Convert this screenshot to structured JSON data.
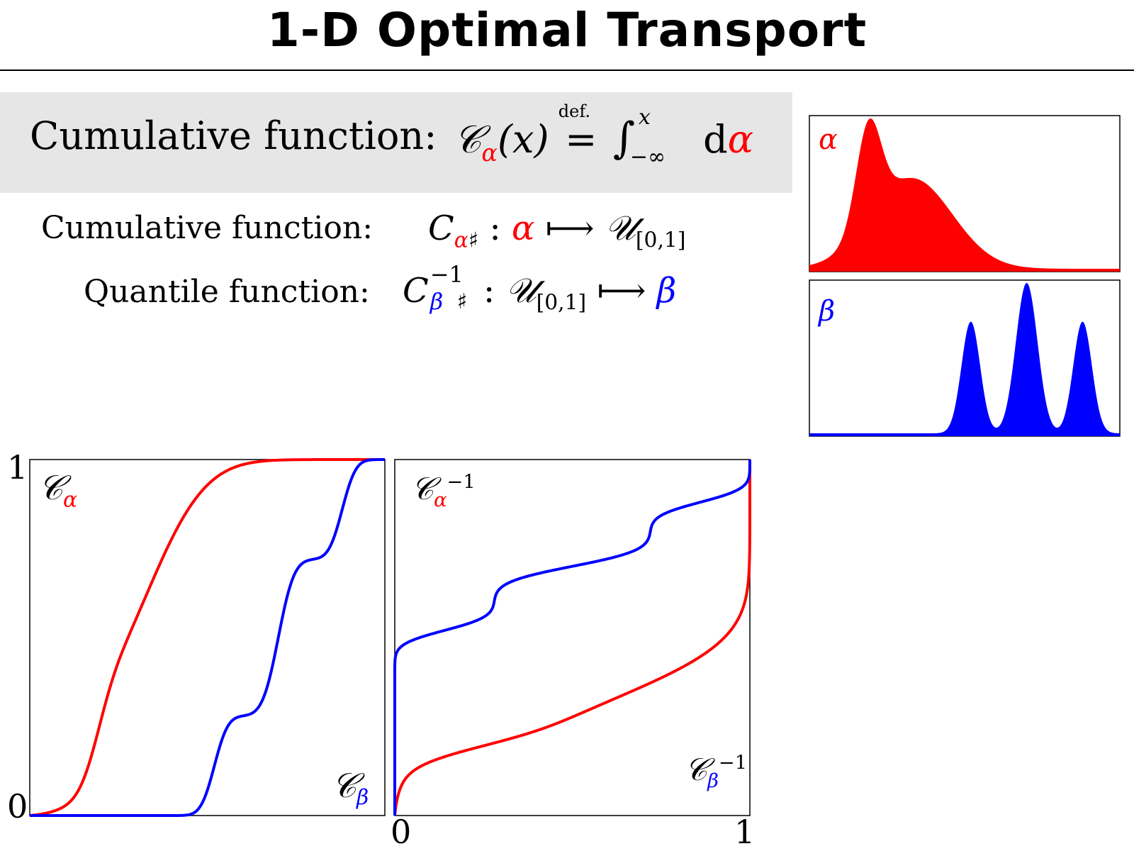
{
  "slide": {
    "title": "1-D Optimal Transport",
    "definition": {
      "label": "Cumulative function:",
      "lhs": "𝒞",
      "sub": "α",
      "arg": "(x)",
      "def": "def.",
      "eq": "=",
      "integral": "∫",
      "upper": "x",
      "lower": "−∞",
      "d": "d",
      "measure": "α"
    },
    "cumulative": {
      "label": "Cumulative function:",
      "C": "C",
      "sub": "α",
      "sharp": "♯",
      "colon": ":",
      "src": "α",
      "arrow": "⟼",
      "U": "𝒰",
      "Usub": "[0,1]"
    },
    "quantile": {
      "label": "Quantile function:",
      "C": "C",
      "sup": "−1",
      "sub": "β",
      "sharp": "♯",
      "colon": ":",
      "U": "𝒰",
      "Usub": "[0,1]",
      "arrow": "⟼",
      "dst": "β"
    }
  },
  "colors": {
    "alpha": "#ff0000",
    "beta": "#0000ff"
  },
  "chart_data": [
    {
      "type": "area",
      "name": "density-alpha",
      "label": "α",
      "color": "#ff0000",
      "components": [
        {
          "weight": 0.25,
          "mean": 0.19,
          "sd": 0.04
        },
        {
          "weight": 0.75,
          "mean": 0.33,
          "sd": 0.13
        }
      ]
    },
    {
      "type": "area",
      "name": "density-beta",
      "label": "β",
      "color": "#0000ff",
      "components": [
        {
          "weight": 0.28,
          "mean": 0.52,
          "sd": 0.03
        },
        {
          "weight": 0.44,
          "mean": 0.7,
          "sd": 0.035
        },
        {
          "weight": 0.28,
          "mean": 0.88,
          "sd": 0.03
        }
      ]
    },
    {
      "type": "line",
      "name": "cumulative-functions",
      "xlim": [
        0,
        1
      ],
      "ylim": [
        0,
        1
      ],
      "ytick_labels": [
        "0",
        "1"
      ],
      "series": [
        {
          "name": "𝒞α",
          "color": "#ff0000"
        },
        {
          "name": "𝒞β",
          "color": "#0000ff"
        }
      ]
    },
    {
      "type": "line",
      "name": "quantile-functions",
      "xlim": [
        0,
        1
      ],
      "ylim": [
        0,
        1
      ],
      "xtick_labels": [
        "0",
        "1"
      ],
      "series": [
        {
          "name": "𝒞α⁻¹",
          "color": "#ff0000"
        },
        {
          "name": "𝒞β⁻¹",
          "color": "#0000ff"
        }
      ]
    }
  ]
}
